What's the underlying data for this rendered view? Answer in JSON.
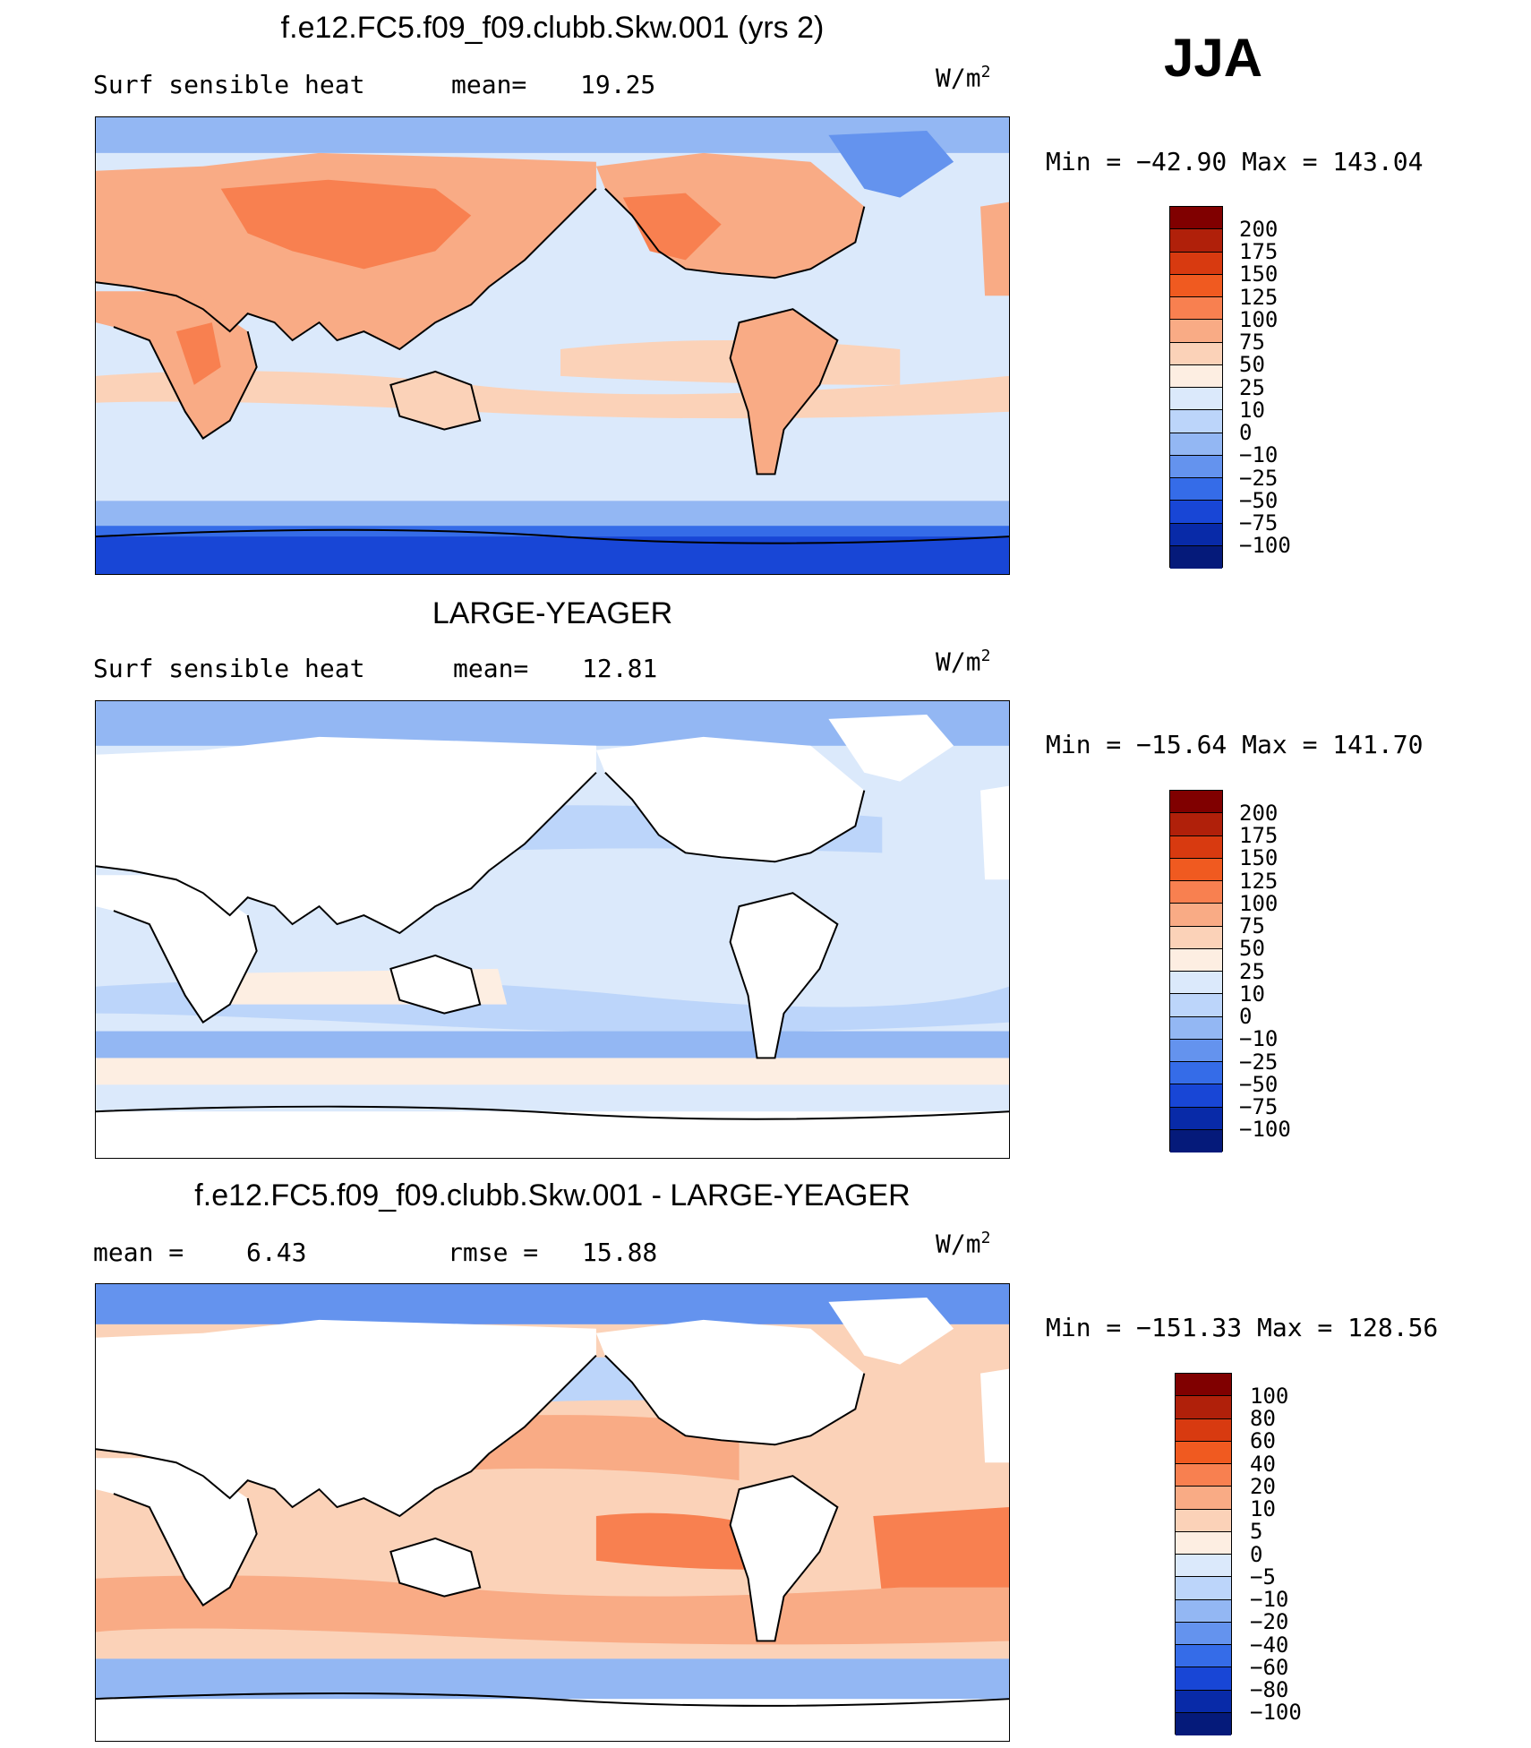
{
  "season": "JJA",
  "panels": [
    {
      "title": "f.e12.FC5.f09_f09.clubb.Skw.001 (yrs 2)",
      "left_label": "Surf sensible heat",
      "mid_label": "mean=",
      "mid_value": "19.25",
      "units": "W/m",
      "units_sup": "2",
      "minmax": "Min = −42.90 Max = 143.04",
      "colorbar_labels": [
        "200",
        "175",
        "150",
        "125",
        "100",
        "75",
        "50",
        "25",
        "10",
        "0",
        "−10",
        "−25",
        "−50",
        "−75",
        "−100"
      ]
    },
    {
      "title": "LARGE-YEAGER",
      "left_label": "Surf sensible heat",
      "mid_label": "mean=",
      "mid_value": "12.81",
      "units": "W/m",
      "units_sup": "2",
      "minmax": "Min = −15.64 Max = 141.70",
      "colorbar_labels": [
        "200",
        "175",
        "150",
        "125",
        "100",
        "75",
        "50",
        "25",
        "10",
        "0",
        "−10",
        "−25",
        "−50",
        "−75",
        "−100"
      ]
    },
    {
      "title": "f.e12.FC5.f09_f09.clubb.Skw.001 - LARGE-YEAGER",
      "left_label": "mean =",
      "left_value": "6.43",
      "mid_label": "rmse =",
      "mid_value": "15.88",
      "units": "W/m",
      "units_sup": "2",
      "minmax": "Min = −151.33 Max = 128.56",
      "colorbar_labels": [
        "100",
        "80",
        "60",
        "40",
        "20",
        "10",
        "5",
        "0",
        "−5",
        "−10",
        "−20",
        "−40",
        "−60",
        "−80",
        "−100"
      ]
    }
  ],
  "colors": {
    "scale": [
      "#800000",
      "#b0200a",
      "#d83a10",
      "#f05a20",
      "#f88050",
      "#f9ab85",
      "#fbd2b8",
      "#fdeee2",
      "#dbe9fb",
      "#bcd5fa",
      "#93b7f3",
      "#6493ee",
      "#356ce8",
      "#1846d6",
      "#082aa8",
      "#051a7a"
    ],
    "land_mask": "#ffffff",
    "ocean_base_1": "#dbe9fb",
    "ocean_base_2": "#dbe9fb",
    "ocean_base_3": "#fbd2b8",
    "coast": "#000000"
  }
}
